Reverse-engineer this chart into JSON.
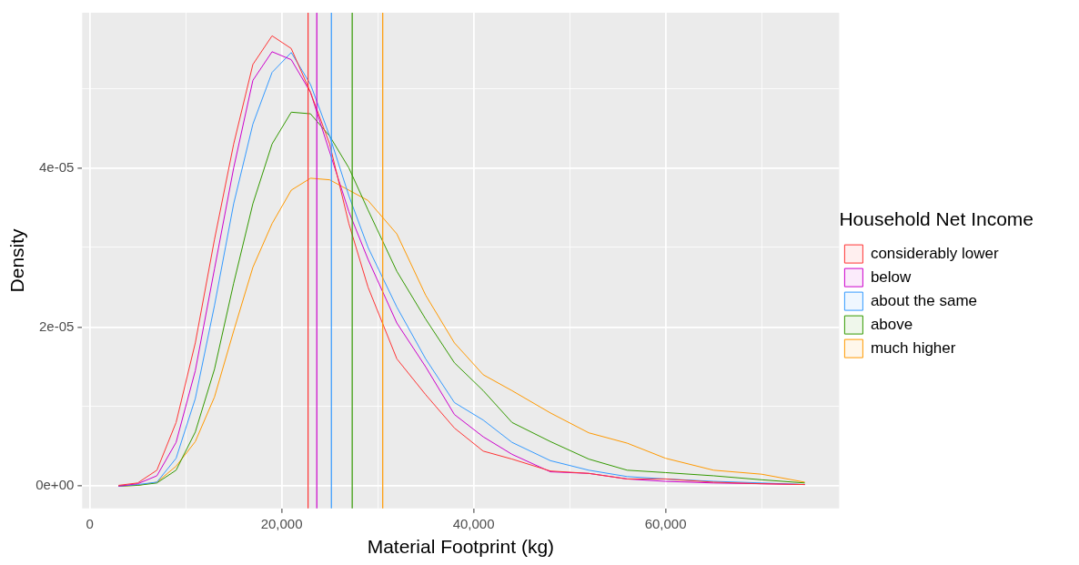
{
  "chart_data": {
    "type": "line",
    "xlabel": "Material Footprint (kg)",
    "ylabel": "Density",
    "legend_title": "Household Net Income",
    "legend": "right",
    "grid": true,
    "x": [
      3000,
      5000,
      7000,
      9000,
      11000,
      13000,
      15000,
      17000,
      19000,
      21000,
      23000,
      25000,
      27000,
      29000,
      32000,
      35000,
      38000,
      41000,
      44000,
      48000,
      52000,
      56000,
      60000,
      65000,
      70000,
      74500
    ],
    "series": [
      {
        "name": "considerably lower",
        "color": "#ff3333",
        "values": [
          1e-07,
          4e-07,
          2e-06,
          8e-06,
          1.8e-05,
          3.1e-05,
          4.3e-05,
          5.3e-05,
          5.66e-05,
          5.5e-05,
          4.95e-05,
          4.3e-05,
          3.3e-05,
          2.5e-05,
          1.6e-05,
          1.15e-05,
          7.3e-06,
          4.4e-06,
          3.4e-06,
          1.9e-06,
          1.6e-06,
          9e-07,
          9e-07,
          5e-07,
          3e-07,
          2e-07
        ]
      },
      {
        "name": "below",
        "color": "#cc00cc",
        "values": [
          0,
          3e-07,
          1.3e-06,
          5.5e-06,
          1.45e-05,
          2.73e-05,
          4e-05,
          5.1e-05,
          5.46e-05,
          5.36e-05,
          4.95e-05,
          4.2e-05,
          3.45e-05,
          2.85e-05,
          2.05e-05,
          1.5e-05,
          9e-06,
          6.2e-06,
          4e-06,
          1.8e-06,
          1.6e-06,
          9e-07,
          6e-07,
          4e-07,
          3e-07,
          2e-07
        ]
      },
      {
        "name": "about the same",
        "color": "#3399ff",
        "values": [
          0,
          2e-07,
          5e-07,
          3.5e-06,
          1.1e-05,
          2.27e-05,
          3.55e-05,
          4.55e-05,
          5.2e-05,
          5.45e-05,
          5.05e-05,
          4.4e-05,
          3.65e-05,
          3e-05,
          2.25e-05,
          1.6e-05,
          1.05e-05,
          8.3e-06,
          5.5e-06,
          3.2e-06,
          2e-06,
          1.2e-06,
          9e-07,
          6e-07,
          4e-07,
          2e-07
        ]
      },
      {
        "name": "above",
        "color": "#339900",
        "values": [
          0,
          1e-07,
          4e-07,
          2e-06,
          6.8e-06,
          1.47e-05,
          2.55e-05,
          3.55e-05,
          4.3e-05,
          4.7e-05,
          4.68e-05,
          4.4e-05,
          4e-05,
          3.47e-05,
          2.7e-05,
          2.1e-05,
          1.55e-05,
          1.2e-05,
          8e-06,
          5.6e-06,
          3.4e-06,
          2e-06,
          1.7e-06,
          1.3e-06,
          8e-07,
          4e-07
        ]
      },
      {
        "name": "much higher",
        "color": "#ff9900",
        "values": [
          0,
          1e-07,
          5e-07,
          2.5e-06,
          5.6e-06,
          1.12e-05,
          1.95e-05,
          2.75e-05,
          3.3e-05,
          3.72e-05,
          3.87e-05,
          3.85e-05,
          3.72e-05,
          3.59e-05,
          3.17e-05,
          2.4e-05,
          1.8e-05,
          1.4e-05,
          1.2e-05,
          9.2e-06,
          6.7e-06,
          5.4e-06,
          3.5e-06,
          2e-06,
          1.5e-06,
          5e-07
        ]
      }
    ],
    "xlim": [
      -785,
      78085
    ],
    "xticks": [
      0,
      {
        "value": 10000,
        "label": null
      },
      {
        "value": 20000,
        "label": "20,000"
      },
      {
        "value": 30000,
        "label": null
      },
      {
        "value": 40000,
        "label": "40,000"
      },
      {
        "value": 50000,
        "label": null
      },
      {
        "value": 60000,
        "label": "60,000"
      },
      {
        "value": 70000,
        "label": null
      }
    ],
    "ylim": [
      -2.8e-06,
      5.95e-05
    ],
    "yticks": [
      {
        "value": 0,
        "label": "0e+00"
      },
      {
        "value": 1e-05,
        "label": null
      },
      {
        "value": 2e-05,
        "label": "2e-05"
      },
      {
        "value": 3e-05,
        "label": null
      },
      {
        "value": 4e-05,
        "label": "4e-05"
      },
      {
        "value": 5e-05,
        "label": null
      }
    ],
    "ref_lines": [
      {
        "axis": "x",
        "value": 22750,
        "color": "#ff3333"
      },
      {
        "axis": "x",
        "value": 23660,
        "color": "#cc00cc"
      },
      {
        "axis": "x",
        "value": 25180,
        "color": "#3399ff"
      },
      {
        "axis": "x",
        "value": 27350,
        "color": "#339900"
      },
      {
        "axis": "x",
        "value": 30530,
        "color": "#ff9900"
      }
    ]
  }
}
